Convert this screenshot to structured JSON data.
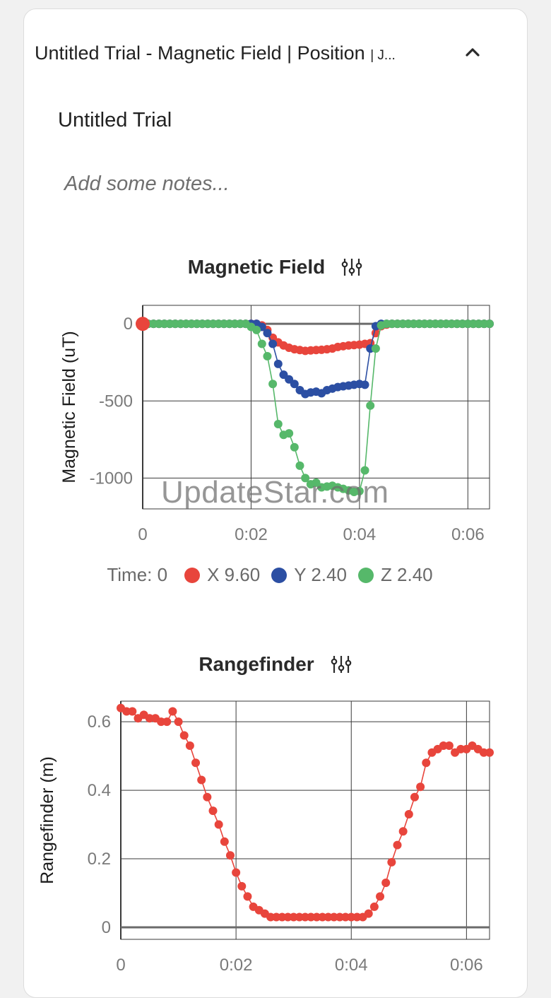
{
  "card": {
    "title": "Untitled Trial - Magnetic Field | Position",
    "title_suffix": "| J...",
    "collapse_icon": "chevron-up-icon",
    "trial_name": "Untitled Trial",
    "notes_placeholder": "Add some notes..."
  },
  "colors": {
    "x": "#e8453c",
    "y": "#2c4fa3",
    "z": "#56b86a",
    "range": "#e8453c",
    "grid": "#4a4a4a",
    "axis": "#666666"
  },
  "magnetic": {
    "title": "Magnetic Field",
    "settings_icon": "sliders-icon",
    "legend": {
      "time_label": "Time: 0",
      "x_label": "X 9.60",
      "y_label": "Y 2.40",
      "z_label": "Z 2.40"
    }
  },
  "rangefinder": {
    "title": "Rangefinder",
    "settings_icon": "sliders-icon"
  },
  "watermark": "UpdateStar.com",
  "chart_data": [
    {
      "type": "line",
      "title": "Magnetic Field",
      "ylabel": "Magnetic Field (uT)",
      "xlabel": "",
      "xlim": [
        0,
        6.4
      ],
      "ylim": [
        -1200,
        120
      ],
      "x_ticks": [
        0,
        2,
        4,
        6
      ],
      "x_tick_labels": [
        "0",
        "0:02",
        "0:04",
        "0:06"
      ],
      "y_ticks": [
        0,
        -500,
        -1000
      ],
      "y_tick_labels": [
        "0",
        "-500",
        "-1000"
      ],
      "grid": true,
      "legend": "bottom",
      "series": [
        {
          "name": "X",
          "color": "#e8453c",
          "x": [
            0,
            0.1,
            0.2,
            0.3,
            0.4,
            0.5,
            0.6,
            0.7,
            0.8,
            0.9,
            1.0,
            1.1,
            1.2,
            1.3,
            1.4,
            1.5,
            1.6,
            1.7,
            1.8,
            1.9,
            2.0,
            2.1,
            2.2,
            2.3,
            2.4,
            2.5,
            2.6,
            2.7,
            2.8,
            2.9,
            3.0,
            3.1,
            3.2,
            3.3,
            3.4,
            3.5,
            3.6,
            3.7,
            3.8,
            3.9,
            4.0,
            4.1,
            4.2,
            4.3,
            4.4,
            4.5,
            4.6,
            4.7,
            4.8,
            4.9,
            5.0,
            5.1,
            5.2,
            5.3,
            5.4,
            5.5,
            5.6,
            5.7,
            5.8,
            5.9,
            6.0,
            6.1,
            6.2,
            6.3,
            6.4
          ],
          "y": [
            0,
            0,
            0,
            0,
            0,
            0,
            0,
            0,
            0,
            0,
            0,
            0,
            0,
            0,
            0,
            0,
            0,
            0,
            0,
            0,
            0,
            0,
            -10,
            -40,
            -90,
            -120,
            -140,
            -155,
            -165,
            -170,
            -175,
            -172,
            -170,
            -168,
            -165,
            -160,
            -150,
            -145,
            -140,
            -138,
            -135,
            -130,
            -125,
            -60,
            -15,
            -5,
            0,
            0,
            0,
            0,
            0,
            0,
            0,
            0,
            0,
            0,
            0,
            0,
            0,
            0,
            0,
            0,
            0,
            0,
            0
          ]
        },
        {
          "name": "Y",
          "color": "#2c4fa3",
          "x": [
            0,
            0.1,
            0.2,
            0.3,
            0.4,
            0.5,
            0.6,
            0.7,
            0.8,
            0.9,
            1.0,
            1.1,
            1.2,
            1.3,
            1.4,
            1.5,
            1.6,
            1.7,
            1.8,
            1.9,
            2.0,
            2.1,
            2.2,
            2.3,
            2.4,
            2.5,
            2.6,
            2.7,
            2.8,
            2.9,
            3.0,
            3.1,
            3.2,
            3.3,
            3.4,
            3.5,
            3.6,
            3.7,
            3.8,
            3.9,
            4.0,
            4.1,
            4.2,
            4.3,
            4.4,
            4.5,
            4.6,
            4.7,
            4.8,
            4.9,
            5.0,
            5.1,
            5.2,
            5.3,
            5.4,
            5.5,
            5.6,
            5.7,
            5.8,
            5.9,
            6.0,
            6.1,
            6.2,
            6.3,
            6.4
          ],
          "y": [
            0,
            0,
            0,
            0,
            0,
            0,
            0,
            0,
            0,
            0,
            0,
            0,
            0,
            0,
            0,
            0,
            0,
            0,
            0,
            0,
            0,
            0,
            -20,
            -60,
            -130,
            -260,
            -330,
            -360,
            -390,
            -430,
            -455,
            -445,
            -440,
            -450,
            -430,
            -420,
            -410,
            -405,
            -400,
            -395,
            -390,
            -395,
            -160,
            -15,
            0,
            0,
            0,
            0,
            0,
            0,
            0,
            0,
            0,
            0,
            0,
            0,
            0,
            0,
            0,
            0,
            0,
            0,
            0,
            0,
            0
          ]
        },
        {
          "name": "Z",
          "color": "#56b86a",
          "x": [
            0,
            0.1,
            0.2,
            0.3,
            0.4,
            0.5,
            0.6,
            0.7,
            0.8,
            0.9,
            1.0,
            1.1,
            1.2,
            1.3,
            1.4,
            1.5,
            1.6,
            1.7,
            1.8,
            1.9,
            2.0,
            2.1,
            2.2,
            2.3,
            2.4,
            2.5,
            2.6,
            2.7,
            2.8,
            2.9,
            3.0,
            3.1,
            3.2,
            3.3,
            3.4,
            3.5,
            3.6,
            3.7,
            3.8,
            3.9,
            4.0,
            4.1,
            4.2,
            4.3,
            4.4,
            4.5,
            4.6,
            4.7,
            4.8,
            4.9,
            5.0,
            5.1,
            5.2,
            5.3,
            5.4,
            5.5,
            5.6,
            5.7,
            5.8,
            5.9,
            6.0,
            6.1,
            6.2,
            6.3,
            6.4
          ],
          "y": [
            0,
            0,
            0,
            0,
            0,
            0,
            0,
            0,
            0,
            0,
            0,
            0,
            0,
            0,
            0,
            0,
            0,
            0,
            0,
            0,
            -20,
            -40,
            -130,
            -210,
            -390,
            -650,
            -720,
            -710,
            -800,
            -920,
            -1000,
            -1040,
            -1030,
            -1060,
            -1055,
            -1050,
            -1060,
            -1070,
            -1080,
            -1090,
            -1085,
            -950,
            -530,
            -160,
            -10,
            0,
            0,
            0,
            0,
            0,
            0,
            0,
            0,
            0,
            0,
            0,
            0,
            0,
            0,
            0,
            0,
            0,
            0,
            0,
            0
          ]
        }
      ]
    },
    {
      "type": "line",
      "title": "Rangefinder",
      "ylabel": "Rangefinder (m)",
      "xlabel": "",
      "xlim": [
        0,
        6.4
      ],
      "ylim": [
        -0.035,
        0.66
      ],
      "x_ticks": [
        0,
        2,
        4,
        6
      ],
      "x_tick_labels": [
        "0",
        "0:02",
        "0:04",
        "0:06"
      ],
      "y_ticks": [
        0,
        0.2,
        0.4,
        0.6
      ],
      "y_tick_labels": [
        "0",
        "0.2",
        "0.4",
        "0.6"
      ],
      "grid": true,
      "legend": "none",
      "series": [
        {
          "name": "",
          "color": "#e8453c",
          "x": [
            0,
            0.1,
            0.2,
            0.3,
            0.4,
            0.5,
            0.6,
            0.7,
            0.8,
            0.9,
            1.0,
            1.1,
            1.2,
            1.3,
            1.4,
            1.5,
            1.6,
            1.7,
            1.8,
            1.9,
            2.0,
            2.1,
            2.2,
            2.3,
            2.4,
            2.5,
            2.6,
            2.7,
            2.8,
            2.9,
            3.0,
            3.1,
            3.2,
            3.3,
            3.4,
            3.5,
            3.6,
            3.7,
            3.8,
            3.9,
            4.0,
            4.1,
            4.2,
            4.3,
            4.4,
            4.5,
            4.6,
            4.7,
            4.8,
            4.9,
            5.0,
            5.1,
            5.2,
            5.3,
            5.4,
            5.5,
            5.6,
            5.7,
            5.8,
            5.9,
            6.0,
            6.1,
            6.2,
            6.3,
            6.4
          ],
          "y": [
            0.64,
            0.63,
            0.63,
            0.61,
            0.62,
            0.61,
            0.61,
            0.6,
            0.6,
            0.63,
            0.6,
            0.56,
            0.53,
            0.48,
            0.43,
            0.38,
            0.34,
            0.3,
            0.25,
            0.21,
            0.16,
            0.12,
            0.09,
            0.06,
            0.05,
            0.04,
            0.03,
            0.03,
            0.03,
            0.03,
            0.03,
            0.03,
            0.03,
            0.03,
            0.03,
            0.03,
            0.03,
            0.03,
            0.03,
            0.03,
            0.03,
            0.03,
            0.03,
            0.04,
            0.06,
            0.09,
            0.13,
            0.19,
            0.24,
            0.28,
            0.33,
            0.38,
            0.41,
            0.48,
            0.51,
            0.52,
            0.53,
            0.53,
            0.51,
            0.52,
            0.52,
            0.53,
            0.52,
            0.51,
            0.51
          ]
        }
      ]
    }
  ]
}
